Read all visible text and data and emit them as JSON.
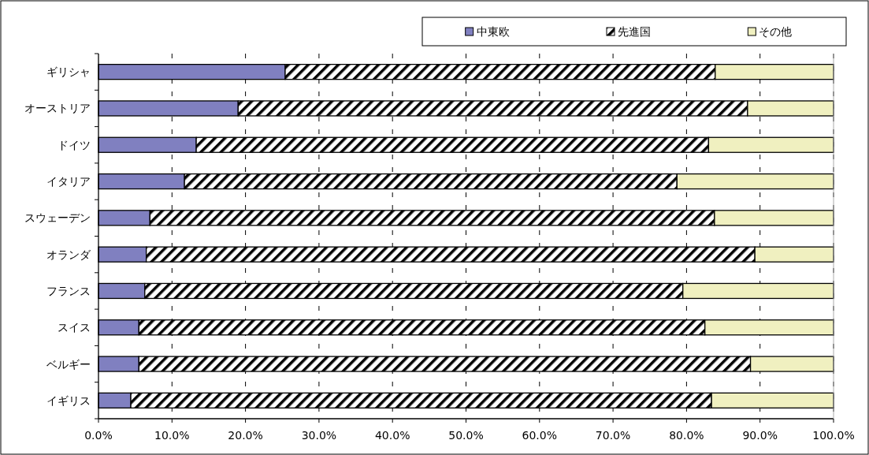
{
  "chart_data": {
    "type": "bar",
    "orientation": "horizontal",
    "stacked": true,
    "categories": [
      "ギリシャ",
      "オーストリア",
      "ドイツ",
      "イタリア",
      "スウェーデン",
      "オランダ",
      "フランス",
      "スイス",
      "ベルギー",
      "イギリス"
    ],
    "series": [
      {
        "name": "中東欧",
        "color": "#8080c0",
        "values": [
          25.4,
          19.0,
          13.3,
          11.7,
          7.0,
          6.5,
          6.3,
          5.5,
          5.5,
          4.4
        ]
      },
      {
        "name": "先進国",
        "color": "#000000",
        "values": [
          58.5,
          69.3,
          69.7,
          67.0,
          76.8,
          82.8,
          73.2,
          77.0,
          83.2,
          79.0
        ]
      },
      {
        "name": "その他",
        "color": "#f0f0c0",
        "values": [
          16.1,
          11.7,
          17.0,
          21.3,
          16.2,
          10.7,
          20.5,
          17.5,
          11.3,
          16.6
        ]
      }
    ],
    "xlim": [
      0,
      100
    ],
    "xticks": [
      {
        "value": 0,
        "label": "0.0%"
      },
      {
        "value": 10,
        "label": "10.0%"
      },
      {
        "value": 20,
        "label": "20.0%"
      },
      {
        "value": 30,
        "label": "30.0%"
      },
      {
        "value": 40,
        "label": "40.0%"
      },
      {
        "value": 50,
        "label": "50.0%"
      },
      {
        "value": 60,
        "label": "60.0%"
      },
      {
        "value": 70,
        "label": "70.0%"
      },
      {
        "value": 80,
        "label": "80.0%"
      },
      {
        "value": 90,
        "label": "90.0%"
      },
      {
        "value": 100,
        "label": "100.0%"
      }
    ],
    "grid": "x",
    "legend": "top right"
  }
}
